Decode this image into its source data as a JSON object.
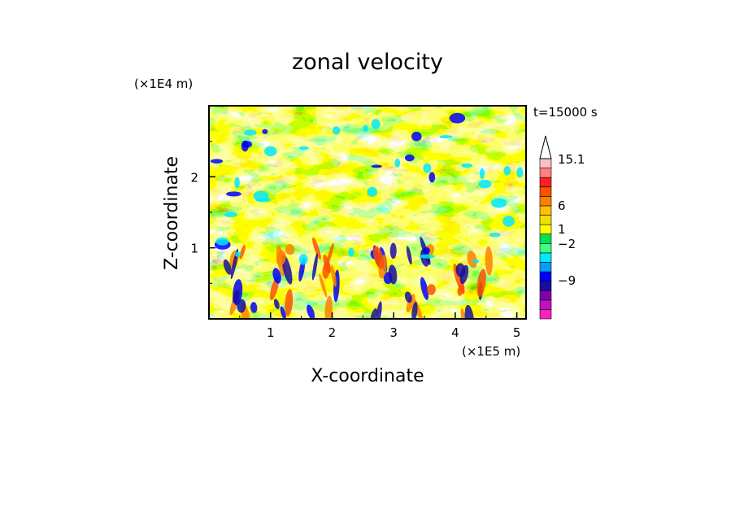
{
  "chart_data": {
    "type": "heatmap",
    "title": "zonal velocity",
    "xlabel": "X-coordinate",
    "ylabel": "Z-coordinate",
    "x_unit": "(×1E5 m)",
    "y_unit": "(×1E4 m)",
    "time_label": "t=15000 s",
    "xlim": [
      0,
      5.15
    ],
    "ylim": [
      0,
      3.0
    ],
    "x_ticks": [
      "1",
      "2",
      "3",
      "4",
      "5"
    ],
    "y_ticks": [
      "1",
      "2"
    ],
    "colorbar": {
      "labels": [
        "15.1",
        "6",
        "1",
        "−2",
        "−9"
      ],
      "colors": [
        "#ff1fbf",
        "#c010c0",
        "#8000b0",
        "#1a0da0",
        "#0000ff",
        "#00a0ff",
        "#00e8ff",
        "#40ff80",
        "#00e050",
        "#ffff00",
        "#f0e000",
        "#ffc000",
        "#ff8000",
        "#ff5000",
        "#ff2020",
        "#ff8080",
        "#ffc0c0"
      ]
    },
    "field_description": "zonal velocity field: mostly weak positive (yellow/green) aloft with wavy banding; strong mixed positive/negative jets near surface around x≈0.5, 1.3, 1.9, 2.9, 3.4 and 4.3 (×1E5 m)"
  }
}
